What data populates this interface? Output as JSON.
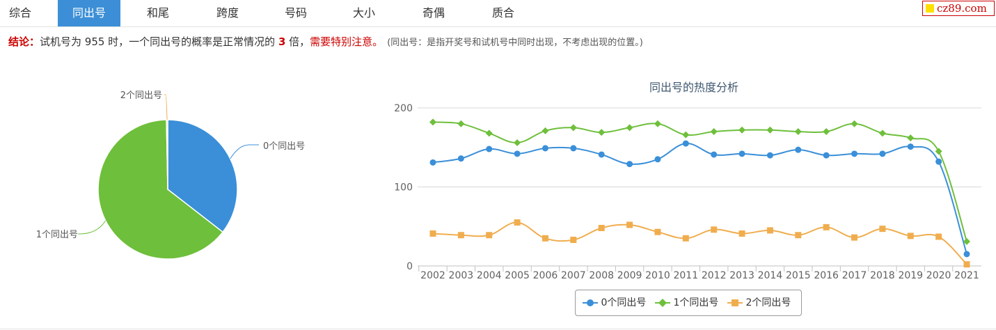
{
  "tabs": [
    "综合",
    "同出号",
    "和尾",
    "跨度",
    "号码",
    "大小",
    "奇偶",
    "质合"
  ],
  "active_tab": 1,
  "logo_text": "cz89.com",
  "conclusion": {
    "label": "结论：",
    "part1": "试机号为 955 时，一个同出号的概率是正常情况的 ",
    "multiple": "3",
    "part2": " 倍，",
    "warning": "需要特别注意。",
    "note": "(同出号：是指开奖号和试机号中同时出现，不考虑出现的位置。)"
  },
  "colors": {
    "s0": "#3a8fd8",
    "s1": "#6ebf3b",
    "s2": "#f0ad4e",
    "tab_active": "#3c8fd6",
    "accent_red": "#cc0000"
  },
  "chart_data": [
    {
      "type": "pie",
      "labels": [
        "0个同出号",
        "1个同出号",
        "2个同出号"
      ],
      "values": [
        35.5,
        64.2,
        0.3
      ]
    },
    {
      "type": "line",
      "title": "同出号的热度分析",
      "x": [
        "2002",
        "2003",
        "2004",
        "2005",
        "2006",
        "2007",
        "2008",
        "2009",
        "2010",
        "2011",
        "2012",
        "2013",
        "2014",
        "2015",
        "2016",
        "2017",
        "2018",
        "2019",
        "2020",
        "2021"
      ],
      "ylim": [
        0,
        200
      ],
      "yticks": [
        "0",
        "100",
        "200"
      ],
      "series": [
        {
          "name": "0个同出号",
          "marker": "circle",
          "values": [
            131,
            136,
            148,
            142,
            149,
            149,
            141,
            129,
            135,
            155,
            141,
            142,
            140,
            147,
            140,
            142,
            142,
            151,
            132,
            15
          ]
        },
        {
          "name": "1个同出号",
          "marker": "diamond",
          "values": [
            182,
            180,
            168,
            156,
            171,
            175,
            169,
            175,
            180,
            166,
            170,
            172,
            172,
            170,
            170,
            180,
            168,
            162,
            145,
            31
          ]
        },
        {
          "name": "2个同出号",
          "marker": "square",
          "values": [
            41,
            39,
            39,
            55,
            35,
            33,
            48,
            52,
            43,
            35,
            46,
            41,
            45,
            39,
            49,
            36,
            47,
            38,
            37,
            2
          ]
        }
      ],
      "legend_position": "bottom",
      "grid": true
    }
  ]
}
